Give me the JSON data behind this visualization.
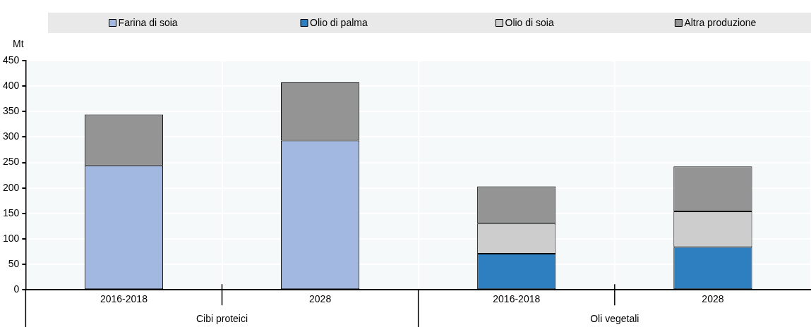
{
  "chart_data": {
    "type": "bar",
    "stacked": true,
    "ylabel": "Mt",
    "categories": [
      "2016-2018",
      "2028",
      "2016-2018",
      "2028"
    ],
    "annotations": [
      "Cibi proteici",
      "Oli vegetali"
    ],
    "series": [
      {
        "name": "Farina di soia",
        "color": "#a2b8e1",
        "values": [
          244,
          293,
          null,
          null
        ]
      },
      {
        "name": "Olio di palma",
        "color": "#2e7fbf",
        "values": [
          null,
          null,
          71,
          84
        ]
      },
      {
        "name": "Olio di soia",
        "color": "#cdcdcd",
        "values": [
          null,
          null,
          59,
          70
        ]
      },
      {
        "name": "Altra produzione",
        "color": "#939493",
        "values": [
          100,
          114,
          73,
          88
        ]
      }
    ],
    "ylim": [
      0,
      450
    ],
    "yticks": [
      0,
      50,
      100,
      150,
      200,
      250,
      300,
      350,
      400,
      450
    ],
    "grid": true,
    "legend": "top"
  }
}
